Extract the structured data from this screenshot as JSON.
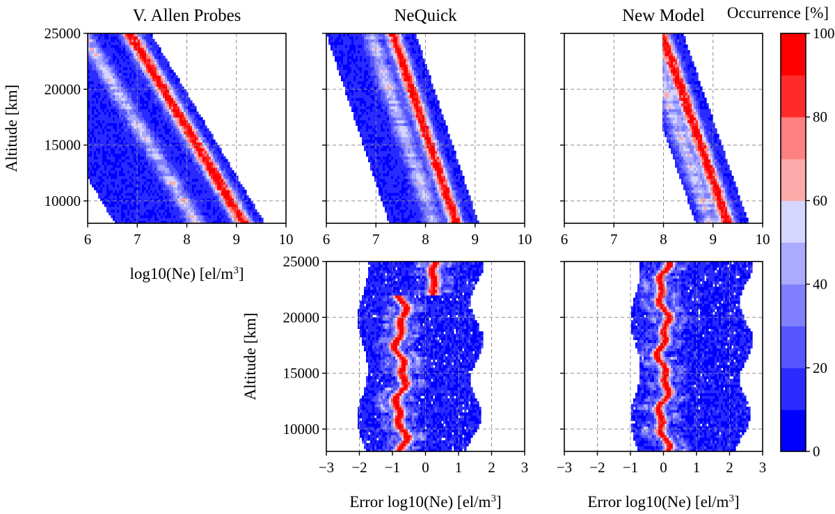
{
  "figure": {
    "colorbar": {
      "title": "Occurrence [%]",
      "range": [
        0,
        100
      ],
      "ticks": [
        "0",
        "20",
        "40",
        "60",
        "80",
        "100"
      ],
      "levels": 10,
      "colors": [
        "#0000ff",
        "#2b2bff",
        "#5656ff",
        "#8080ff",
        "#aaaaff",
        "#d5d5ff",
        "#ffd5d5",
        "#ffaaaa",
        "#ff8080",
        "#ff5656",
        "#ff2b2b",
        "#ff0000"
      ]
    }
  },
  "chart_data": [
    {
      "id": "vap",
      "type": "heatmap",
      "title": "V. Allen Probes",
      "xlabel": "log10(Ne) [el/m",
      "xlabel_sup": "3",
      "xlabel_tail": "]",
      "ylabel": "Altitude [km]",
      "xlim": [
        6,
        10
      ],
      "ylim": [
        8000,
        25000
      ],
      "xticks": [
        "6",
        "7",
        "8",
        "9",
        "10"
      ],
      "yticks": [
        "10000",
        "15000",
        "20000",
        "25000"
      ],
      "density_model": {
        "ref_x_at_8000": 9.15,
        "slope_per_10000km": -1.35,
        "core_width": 0.12,
        "envelope_left": 2.6,
        "envelope_right": 0.42,
        "secondary_offset": -0.95,
        "secondary_strength": 0.55
      }
    },
    {
      "id": "neq",
      "type": "heatmap",
      "title": "NeQuick",
      "xlabel": "",
      "ylabel": "",
      "xlim": [
        6,
        10
      ],
      "ylim": [
        8000,
        25000
      ],
      "xticks": [
        "6",
        "7",
        "8",
        "9",
        "10"
      ],
      "yticks": [],
      "density_model": {
        "ref_x_at_8000": 8.62,
        "slope_per_10000km": -0.75,
        "core_width": 0.1,
        "envelope_left": 1.35,
        "envelope_right": 0.45,
        "secondary_offset": -0.45,
        "secondary_strength": 0.5
      }
    },
    {
      "id": "nm",
      "type": "heatmap",
      "title": "New Model",
      "xlabel": "",
      "ylabel": "",
      "xlim": [
        6,
        10
      ],
      "ylim": [
        8000,
        25000
      ],
      "xticks": [
        "6",
        "7",
        "8",
        "9",
        "10"
      ],
      "yticks": [],
      "density_model": {
        "ref_x_at_8000": 9.3,
        "slope_per_10000km": -0.78,
        "core_width": 0.1,
        "envelope_left": 0.65,
        "envelope_right": 0.42,
        "secondary_offset": -0.35,
        "secondary_strength": 0.55,
        "top_clip_x": 8.0
      }
    },
    {
      "id": "err_neq",
      "type": "heatmap",
      "title": "",
      "xlabel": "Error log10(Ne) [el/m",
      "xlabel_sup": "3",
      "xlabel_tail": "]",
      "ylabel": "Altitude [km]",
      "xlim": [
        -3,
        3
      ],
      "ylim": [
        8000,
        25000
      ],
      "xticks": [
        "−3",
        "−2",
        "−1",
        "0",
        "1",
        "2",
        "3"
      ],
      "yticks": [
        "10000",
        "15000",
        "20000",
        "25000"
      ],
      "density_model": {
        "core_x": -0.75,
        "core_top_x": 0.3,
        "core_width": 0.13,
        "envelope_left": 1.15,
        "envelope_right": 2.3
      }
    },
    {
      "id": "err_nm",
      "type": "heatmap",
      "title": "",
      "xlabel": "Error log10(Ne) [el/m",
      "xlabel_sup": "3",
      "xlabel_tail": "]",
      "ylabel": "",
      "xlim": [
        -3,
        3
      ],
      "ylim": [
        8000,
        25000
      ],
      "xticks": [
        "−3",
        "−2",
        "−1",
        "0",
        "1",
        "2",
        "3"
      ],
      "yticks": [],
      "density_model": {
        "core_x": 0.0,
        "core_top_x": 0.0,
        "core_width": 0.12,
        "envelope_left": 0.85,
        "envelope_right": 2.5
      }
    }
  ]
}
